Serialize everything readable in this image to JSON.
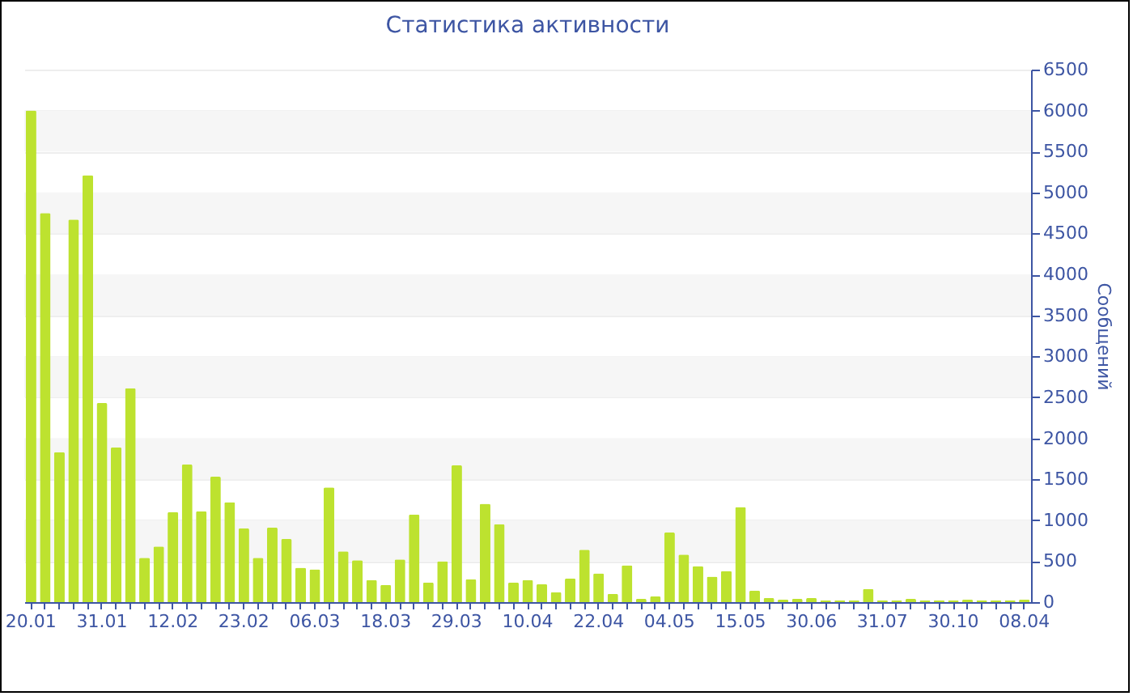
{
  "chart_data": {
    "type": "bar",
    "title": "Статистика активности",
    "ylabel": "Сообщений",
    "categories": [
      "20.01",
      null,
      null,
      null,
      null,
      "31.01",
      null,
      null,
      null,
      null,
      "12.02",
      null,
      null,
      null,
      null,
      "23.02",
      null,
      null,
      null,
      null,
      "06.03",
      null,
      null,
      null,
      null,
      "18.03",
      null,
      null,
      null,
      null,
      "29.03",
      null,
      null,
      null,
      null,
      "10.04",
      null,
      null,
      null,
      null,
      "22.04",
      null,
      null,
      null,
      null,
      "04.05",
      null,
      null,
      null,
      null,
      "15.05",
      null,
      null,
      null,
      null,
      "30.06",
      null,
      null,
      null,
      null,
      "31.07",
      null,
      null,
      null,
      null,
      "30.10",
      null,
      null,
      null,
      null,
      "08.04"
    ],
    "values": [
      6000,
      4750,
      1830,
      4670,
      5210,
      2430,
      1890,
      2610,
      540,
      680,
      1100,
      1680,
      1110,
      1530,
      1220,
      900,
      540,
      910,
      770,
      420,
      400,
      1400,
      620,
      510,
      270,
      210,
      520,
      1070,
      240,
      500,
      1670,
      280,
      1200,
      950,
      240,
      270,
      220,
      120,
      290,
      640,
      350,
      100,
      450,
      40,
      70,
      850,
      580,
      440,
      310,
      380,
      1160,
      140,
      50,
      30,
      40,
      50,
      20,
      20,
      20,
      160,
      20,
      20,
      40,
      20,
      20,
      20,
      30,
      20,
      20,
      20,
      30
    ],
    "color": "#bde22f",
    "ylim": [
      0,
      6500
    ],
    "yticks": [
      0,
      500,
      1000,
      1500,
      2000,
      2500,
      3000,
      3500,
      4000,
      4500,
      5000,
      5500,
      6000,
      6500
    ],
    "grid": true
  }
}
